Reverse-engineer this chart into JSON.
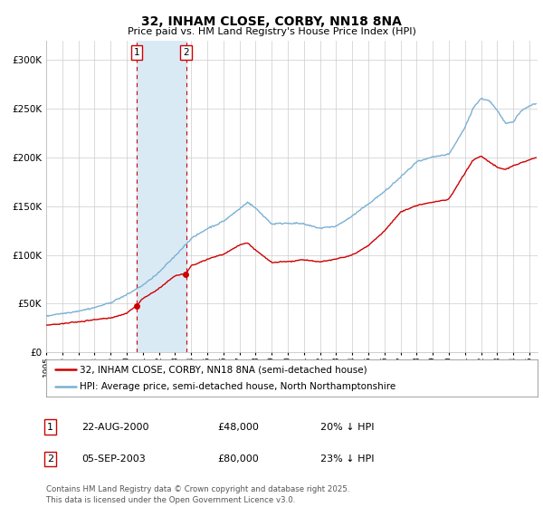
{
  "title": "32, INHAM CLOSE, CORBY, NN18 8NA",
  "subtitle": "Price paid vs. HM Land Registry's House Price Index (HPI)",
  "legend_line1": "32, INHAM CLOSE, CORBY, NN18 8NA (semi-detached house)",
  "legend_line2": "HPI: Average price, semi-detached house, North Northamptonshire",
  "transaction1_date": "22-AUG-2000",
  "transaction1_price": "£48,000",
  "transaction1_hpi": "20% ↓ HPI",
  "transaction1_year": 2000.62,
  "transaction1_value": 48000,
  "transaction2_date": "05-SEP-2003",
  "transaction2_price": "£80,000",
  "transaction2_hpi": "23% ↓ HPI",
  "transaction2_year": 2003.68,
  "transaction2_value": 80000,
  "footer": "Contains HM Land Registry data © Crown copyright and database right 2025.\nThis data is licensed under the Open Government Licence v3.0.",
  "ylim": [
    0,
    320000
  ],
  "yticks": [
    0,
    50000,
    100000,
    150000,
    200000,
    250000,
    300000
  ],
  "line_color_red": "#cc0000",
  "line_color_blue": "#7ab0d4",
  "shade_color": "#daeaf5",
  "grid_color": "#cccccc",
  "bg_color": "#ffffff",
  "box_color": "#cc0000",
  "hpi_points_x": [
    1995,
    1996,
    1997,
    1998,
    1999,
    2000,
    2001,
    2002,
    2003,
    2004,
    2005,
    2006,
    2007,
    2007.5,
    2008,
    2009,
    2010,
    2011,
    2012,
    2013,
    2014,
    2015,
    2016,
    2017,
    2018,
    2019,
    2020,
    2021,
    2021.5,
    2022,
    2022.5,
    2023,
    2023.5,
    2024,
    2024.5,
    2025,
    2025.4
  ],
  "hpi_points_y": [
    37000,
    40000,
    43000,
    47000,
    52000,
    60000,
    70000,
    83000,
    100000,
    118000,
    128000,
    135000,
    148000,
    155000,
    148000,
    132000,
    133000,
    132000,
    128000,
    130000,
    140000,
    152000,
    165000,
    180000,
    195000,
    200000,
    203000,
    230000,
    250000,
    260000,
    258000,
    248000,
    235000,
    237000,
    248000,
    253000,
    255000
  ],
  "red_points_x": [
    1995,
    1996,
    1997,
    1998,
    1999,
    2000,
    2000.62,
    2001,
    2002,
    2003,
    2003.68,
    2004,
    2005,
    2006,
    2007,
    2007.5,
    2008,
    2009,
    2010,
    2011,
    2012,
    2013,
    2014,
    2015,
    2016,
    2017,
    2018,
    2019,
    2020,
    2021,
    2021.5,
    2022,
    2022.5,
    2023,
    2023.5,
    2024,
    2024.5,
    2025,
    2025.4
  ],
  "red_points_y": [
    28000,
    29000,
    31000,
    33000,
    35000,
    40000,
    48000,
    55000,
    65000,
    78000,
    80000,
    88000,
    95000,
    100000,
    110000,
    112000,
    105000,
    92000,
    93000,
    95000,
    93000,
    96000,
    100000,
    110000,
    125000,
    145000,
    152000,
    155000,
    158000,
    185000,
    198000,
    202000,
    196000,
    190000,
    188000,
    192000,
    195000,
    198000,
    200000
  ]
}
